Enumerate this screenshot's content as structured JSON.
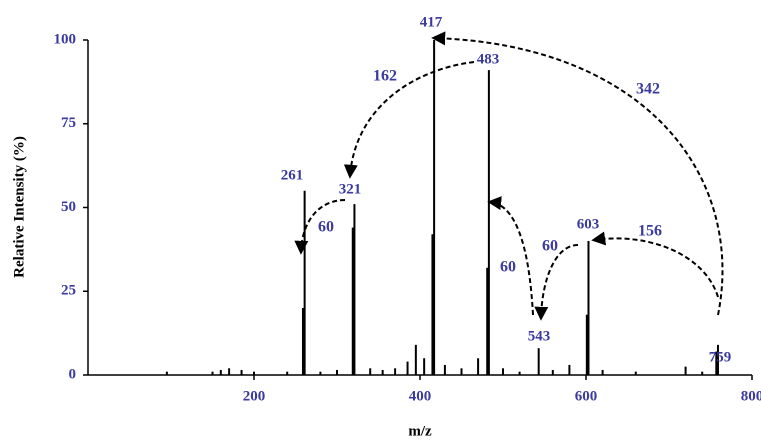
{
  "chart_data": {
    "type": "stick",
    "x_label": "m/z",
    "y_label": "Relative Intensity (%)",
    "x": [
      95,
      150,
      160,
      170,
      185,
      200,
      240,
      259,
      261,
      280,
      300,
      319,
      321,
      340,
      355,
      370,
      385,
      395,
      405,
      415,
      417,
      430,
      450,
      470,
      481,
      483,
      500,
      520,
      543,
      560,
      580,
      601,
      603,
      620,
      660,
      720,
      740,
      757,
      759
    ],
    "values": [
      1,
      1,
      1.5,
      2,
      1.5,
      1,
      1,
      20,
      55,
      1,
      1.5,
      44,
      51,
      2,
      1.5,
      2,
      4,
      9,
      5,
      42,
      100,
      3,
      2,
      5,
      32,
      91,
      2,
      1,
      8,
      1.5,
      3,
      18,
      40,
      1.5,
      1,
      2.5,
      1,
      7,
      9
    ],
    "color": "#000000",
    "xlim": [
      0,
      800
    ],
    "xticks": [
      200,
      400,
      600,
      800
    ],
    "ylim": [
      0,
      100
    ],
    "yticks": [
      0,
      25,
      50,
      75,
      100
    ],
    "peak_labels": [
      "261",
      "321",
      "417",
      "483",
      "543",
      "603",
      "759"
    ],
    "annotations": [
      "342",
      "162",
      "60",
      "60",
      "60",
      "156"
    ],
    "label_color": "#3a3aa0"
  }
}
